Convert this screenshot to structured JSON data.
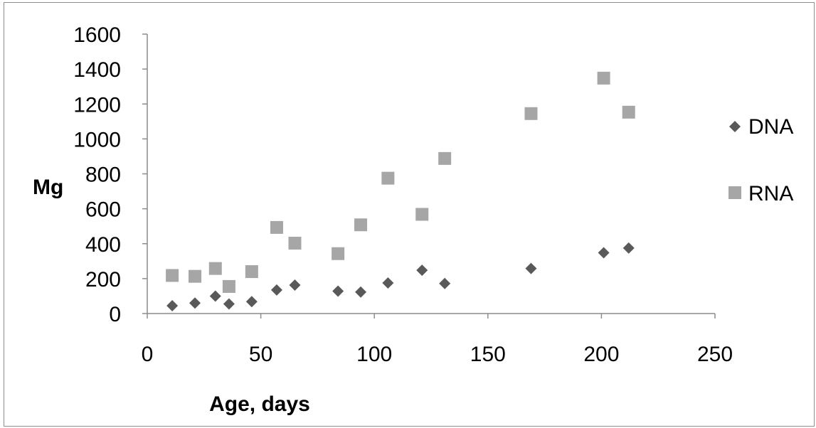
{
  "chart_data": {
    "type": "scatter",
    "title": "",
    "xlabel": "Age, days",
    "ylabel": "Mg",
    "xlim": [
      0,
      250
    ],
    "ylim": [
      0,
      1600
    ],
    "x_ticks": [
      0,
      50,
      100,
      150,
      200,
      250
    ],
    "y_ticks": [
      0,
      200,
      400,
      600,
      800,
      1000,
      1200,
      1400,
      1600
    ],
    "x_tick_labels": [
      "0",
      "50",
      "100",
      "150",
      "200",
      "250"
    ],
    "y_tick_labels": [
      "0",
      "200",
      "400",
      "600",
      "800",
      "1000",
      "1200",
      "1400",
      "1600"
    ],
    "grid": false,
    "legend_position": "right",
    "series": [
      {
        "name": "DNA",
        "marker": "diamond",
        "color": "#595959",
        "points": [
          [
            11,
            45
          ],
          [
            21,
            60
          ],
          [
            30,
            100
          ],
          [
            36,
            55
          ],
          [
            46,
            68
          ],
          [
            57,
            135
          ],
          [
            65,
            163
          ],
          [
            84,
            128
          ],
          [
            94,
            123
          ],
          [
            106,
            175
          ],
          [
            121,
            248
          ],
          [
            131,
            172
          ],
          [
            169,
            258
          ],
          [
            201,
            348
          ],
          [
            212,
            375
          ]
        ]
      },
      {
        "name": "RNA",
        "marker": "square",
        "color": "#a6a6a6",
        "points": [
          [
            11,
            218
          ],
          [
            21,
            213
          ],
          [
            30,
            258
          ],
          [
            36,
            155
          ],
          [
            46,
            240
          ],
          [
            57,
            493
          ],
          [
            65,
            403
          ],
          [
            84,
            343
          ],
          [
            94,
            508
          ],
          [
            106,
            775
          ],
          [
            121,
            568
          ],
          [
            131,
            888
          ],
          [
            169,
            1145
          ],
          [
            201,
            1348
          ],
          [
            212,
            1153
          ]
        ]
      }
    ]
  }
}
